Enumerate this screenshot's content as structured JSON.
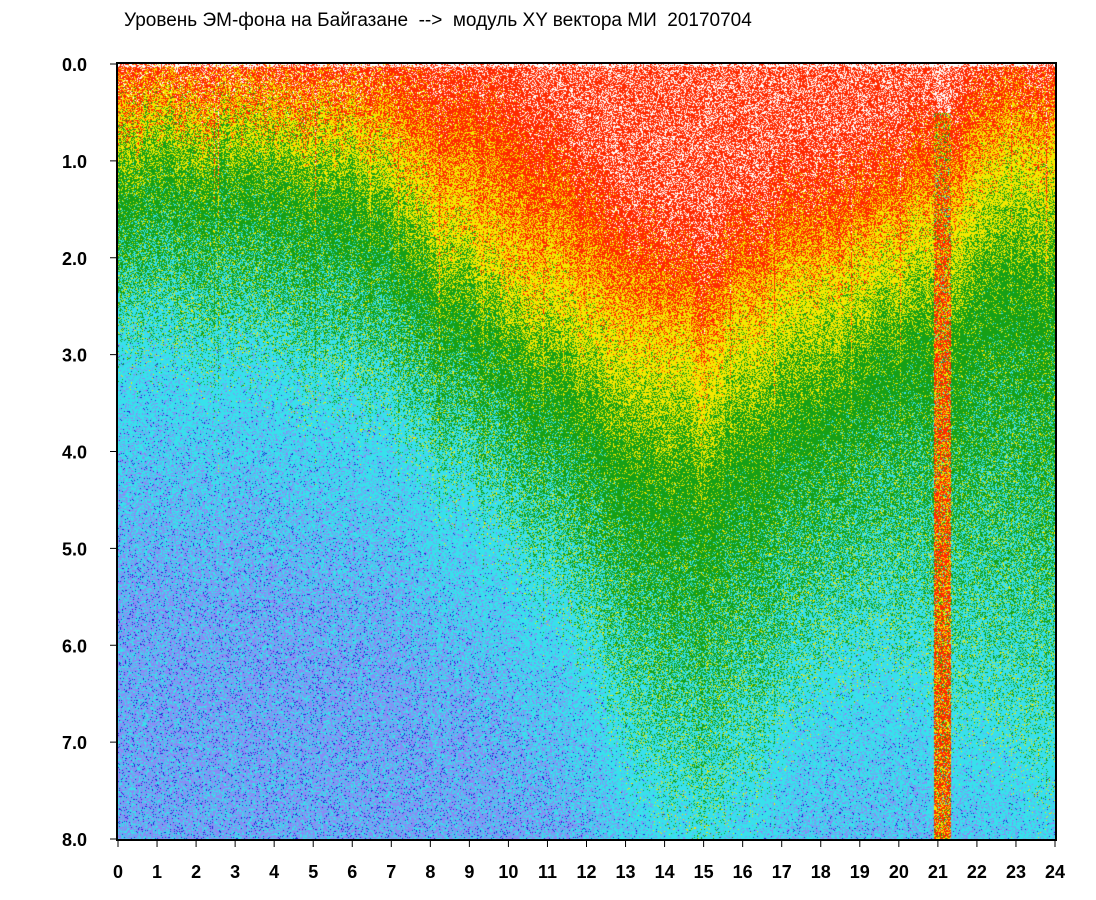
{
  "chart_data": {
    "type": "heatmap",
    "title": "Уровень ЭМ-фона на Байгазане  -->  модуль XY вектора МИ  20170704",
    "xlabel": "",
    "ylabel": "",
    "xlim": [
      0,
      24
    ],
    "ylim": [
      8.0,
      0.0
    ],
    "y_inverted": true,
    "x_ticks": [
      "0",
      "1",
      "2",
      "3",
      "4",
      "5",
      "6",
      "7",
      "8",
      "9",
      "10",
      "11",
      "12",
      "13",
      "14",
      "15",
      "16",
      "17",
      "18",
      "19",
      "20",
      "21",
      "22",
      "23",
      "24"
    ],
    "y_ticks": [
      "0.0",
      "1.0",
      "2.0",
      "3.0",
      "4.0",
      "5.0",
      "6.0",
      "7.0",
      "8.0"
    ],
    "color_scale": [
      "#2222d6",
      "#8a8cf4",
      "#38e0ec",
      "#16a016",
      "#f4e800",
      "#ff2a00"
    ],
    "grid": false,
    "legend": "none",
    "profile_hours": [
      0,
      2,
      4,
      6,
      8,
      10,
      12,
      13,
      14,
      15,
      16,
      17,
      18,
      19,
      20,
      21,
      22,
      23,
      24
    ],
    "red_top_depth": [
      0.05,
      0.05,
      0.05,
      0.05,
      0.1,
      0.3,
      1.2,
      1.6,
      1.8,
      1.9,
      1.7,
      1.4,
      1.2,
      1.0,
      0.9,
      0.5,
      0.2,
      0.1,
      0.05
    ],
    "yellow_depth": [
      0.6,
      0.5,
      0.5,
      0.6,
      1.3,
      2.0,
      2.6,
      2.8,
      2.9,
      3.0,
      2.8,
      2.5,
      2.2,
      2.0,
      1.9,
      1.6,
      1.2,
      0.9,
      0.8
    ],
    "green_depth": [
      1.3,
      1.2,
      1.3,
      1.5,
      2.3,
      3.0,
      3.8,
      4.3,
      4.5,
      4.5,
      4.3,
      4.0,
      3.6,
      3.3,
      3.1,
      2.9,
      2.6,
      2.4,
      2.3
    ],
    "cyan_depth": [
      3.0,
      3.1,
      3.2,
      3.5,
      4.2,
      5.0,
      6.2,
      7.2,
      7.8,
      8.0,
      7.8,
      7.2,
      6.5,
      6.3,
      6.4,
      6.6,
      7.0,
      7.3,
      7.4
    ],
    "anomaly": {
      "hour_start": 20.9,
      "hour_end": 21.35,
      "note": "deep red/yellow vertical streak reaching 8.0"
    }
  }
}
